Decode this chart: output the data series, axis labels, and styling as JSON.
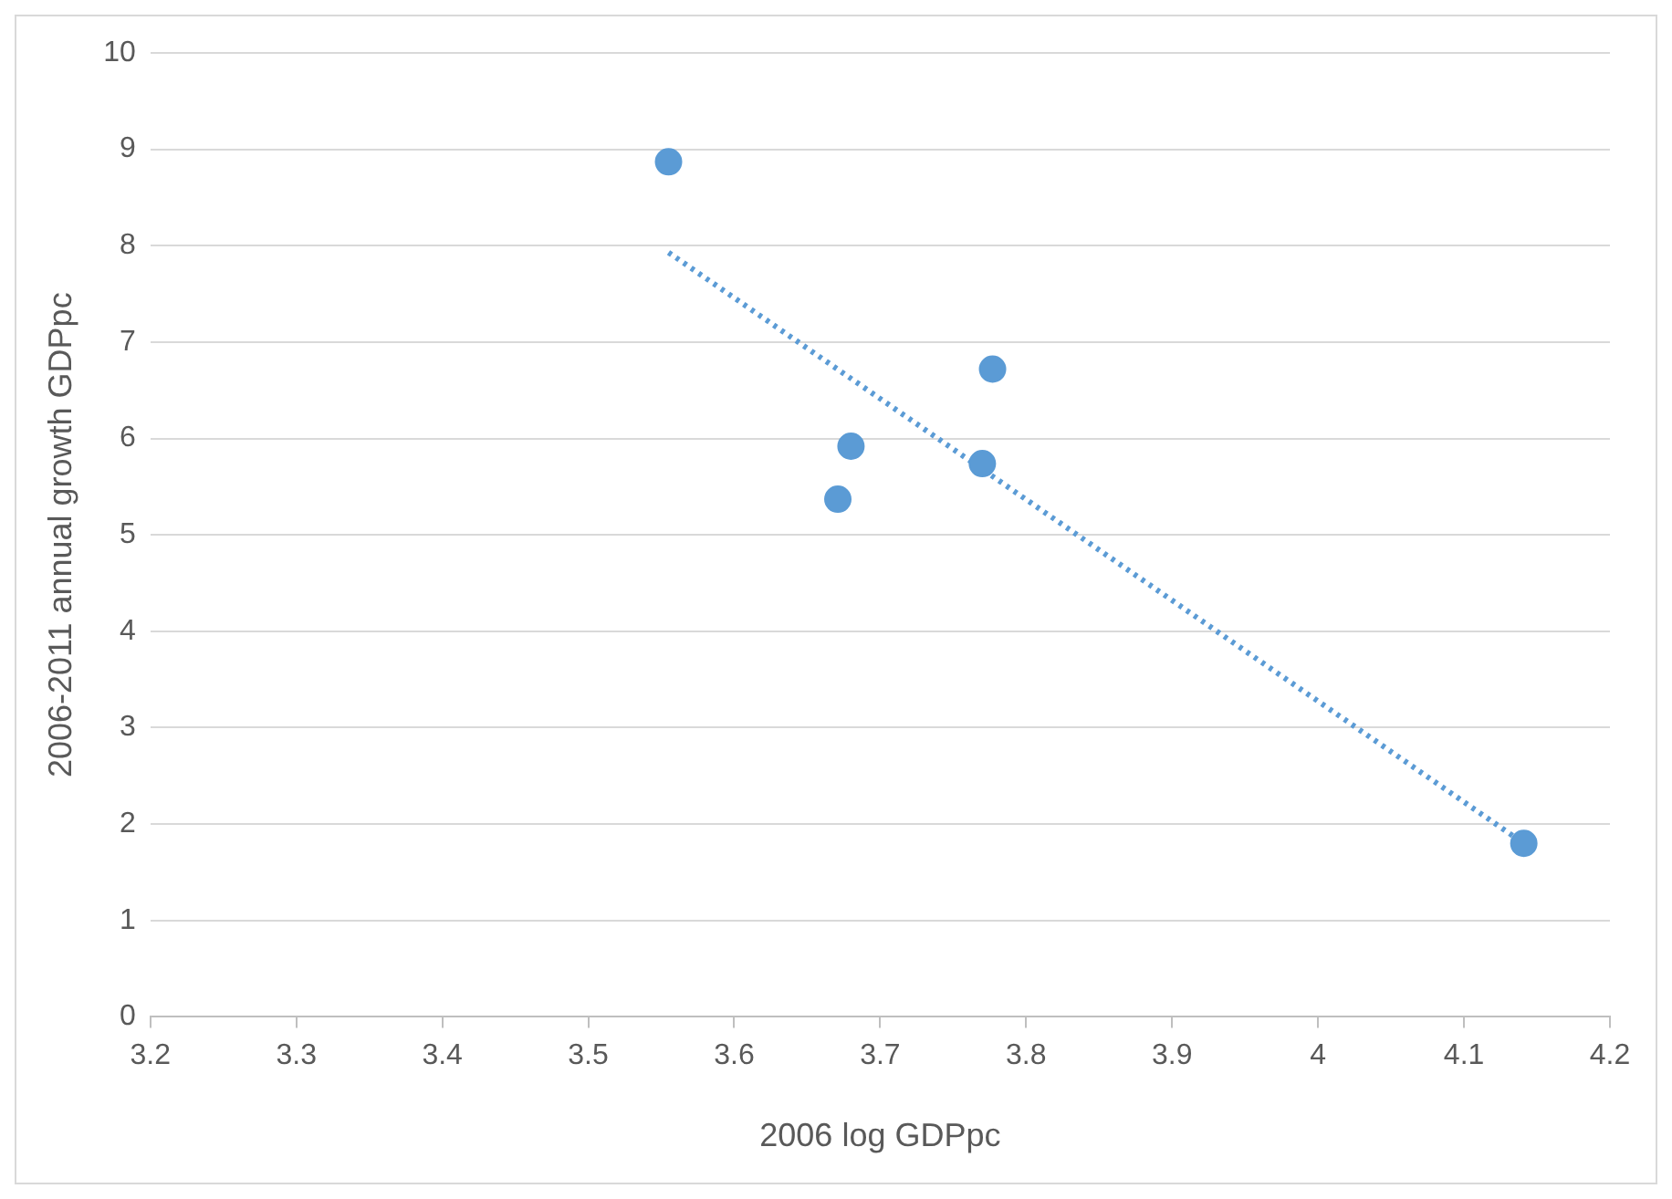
{
  "chart_data": {
    "type": "scatter",
    "xlabel": "2006 log GDPpc",
    "ylabel": "2006-2011 annual growth GDPpc",
    "xlim": [
      3.2,
      4.2
    ],
    "ylim": [
      0,
      10
    ],
    "xticks": [
      3.2,
      3.3,
      3.4,
      3.5,
      3.6,
      3.7,
      3.8,
      3.9,
      4,
      4.1,
      4.2
    ],
    "yticks": [
      0,
      1,
      2,
      3,
      4,
      5,
      6,
      7,
      8,
      9,
      10
    ],
    "grid": "y",
    "series": [
      {
        "type": "scatter",
        "marker": "circle",
        "color": "#5b9bd5",
        "x": [
          3.555,
          3.68,
          3.671,
          3.777,
          3.77,
          4.141
        ],
        "values": [
          8.87,
          5.92,
          5.37,
          6.72,
          5.74,
          1.8
        ]
      },
      {
        "type": "line",
        "color": "#5b9bd5",
        "line_style": "dotted",
        "x": [
          3.555,
          4.141
        ],
        "values": [
          7.93,
          1.8
        ]
      }
    ]
  }
}
